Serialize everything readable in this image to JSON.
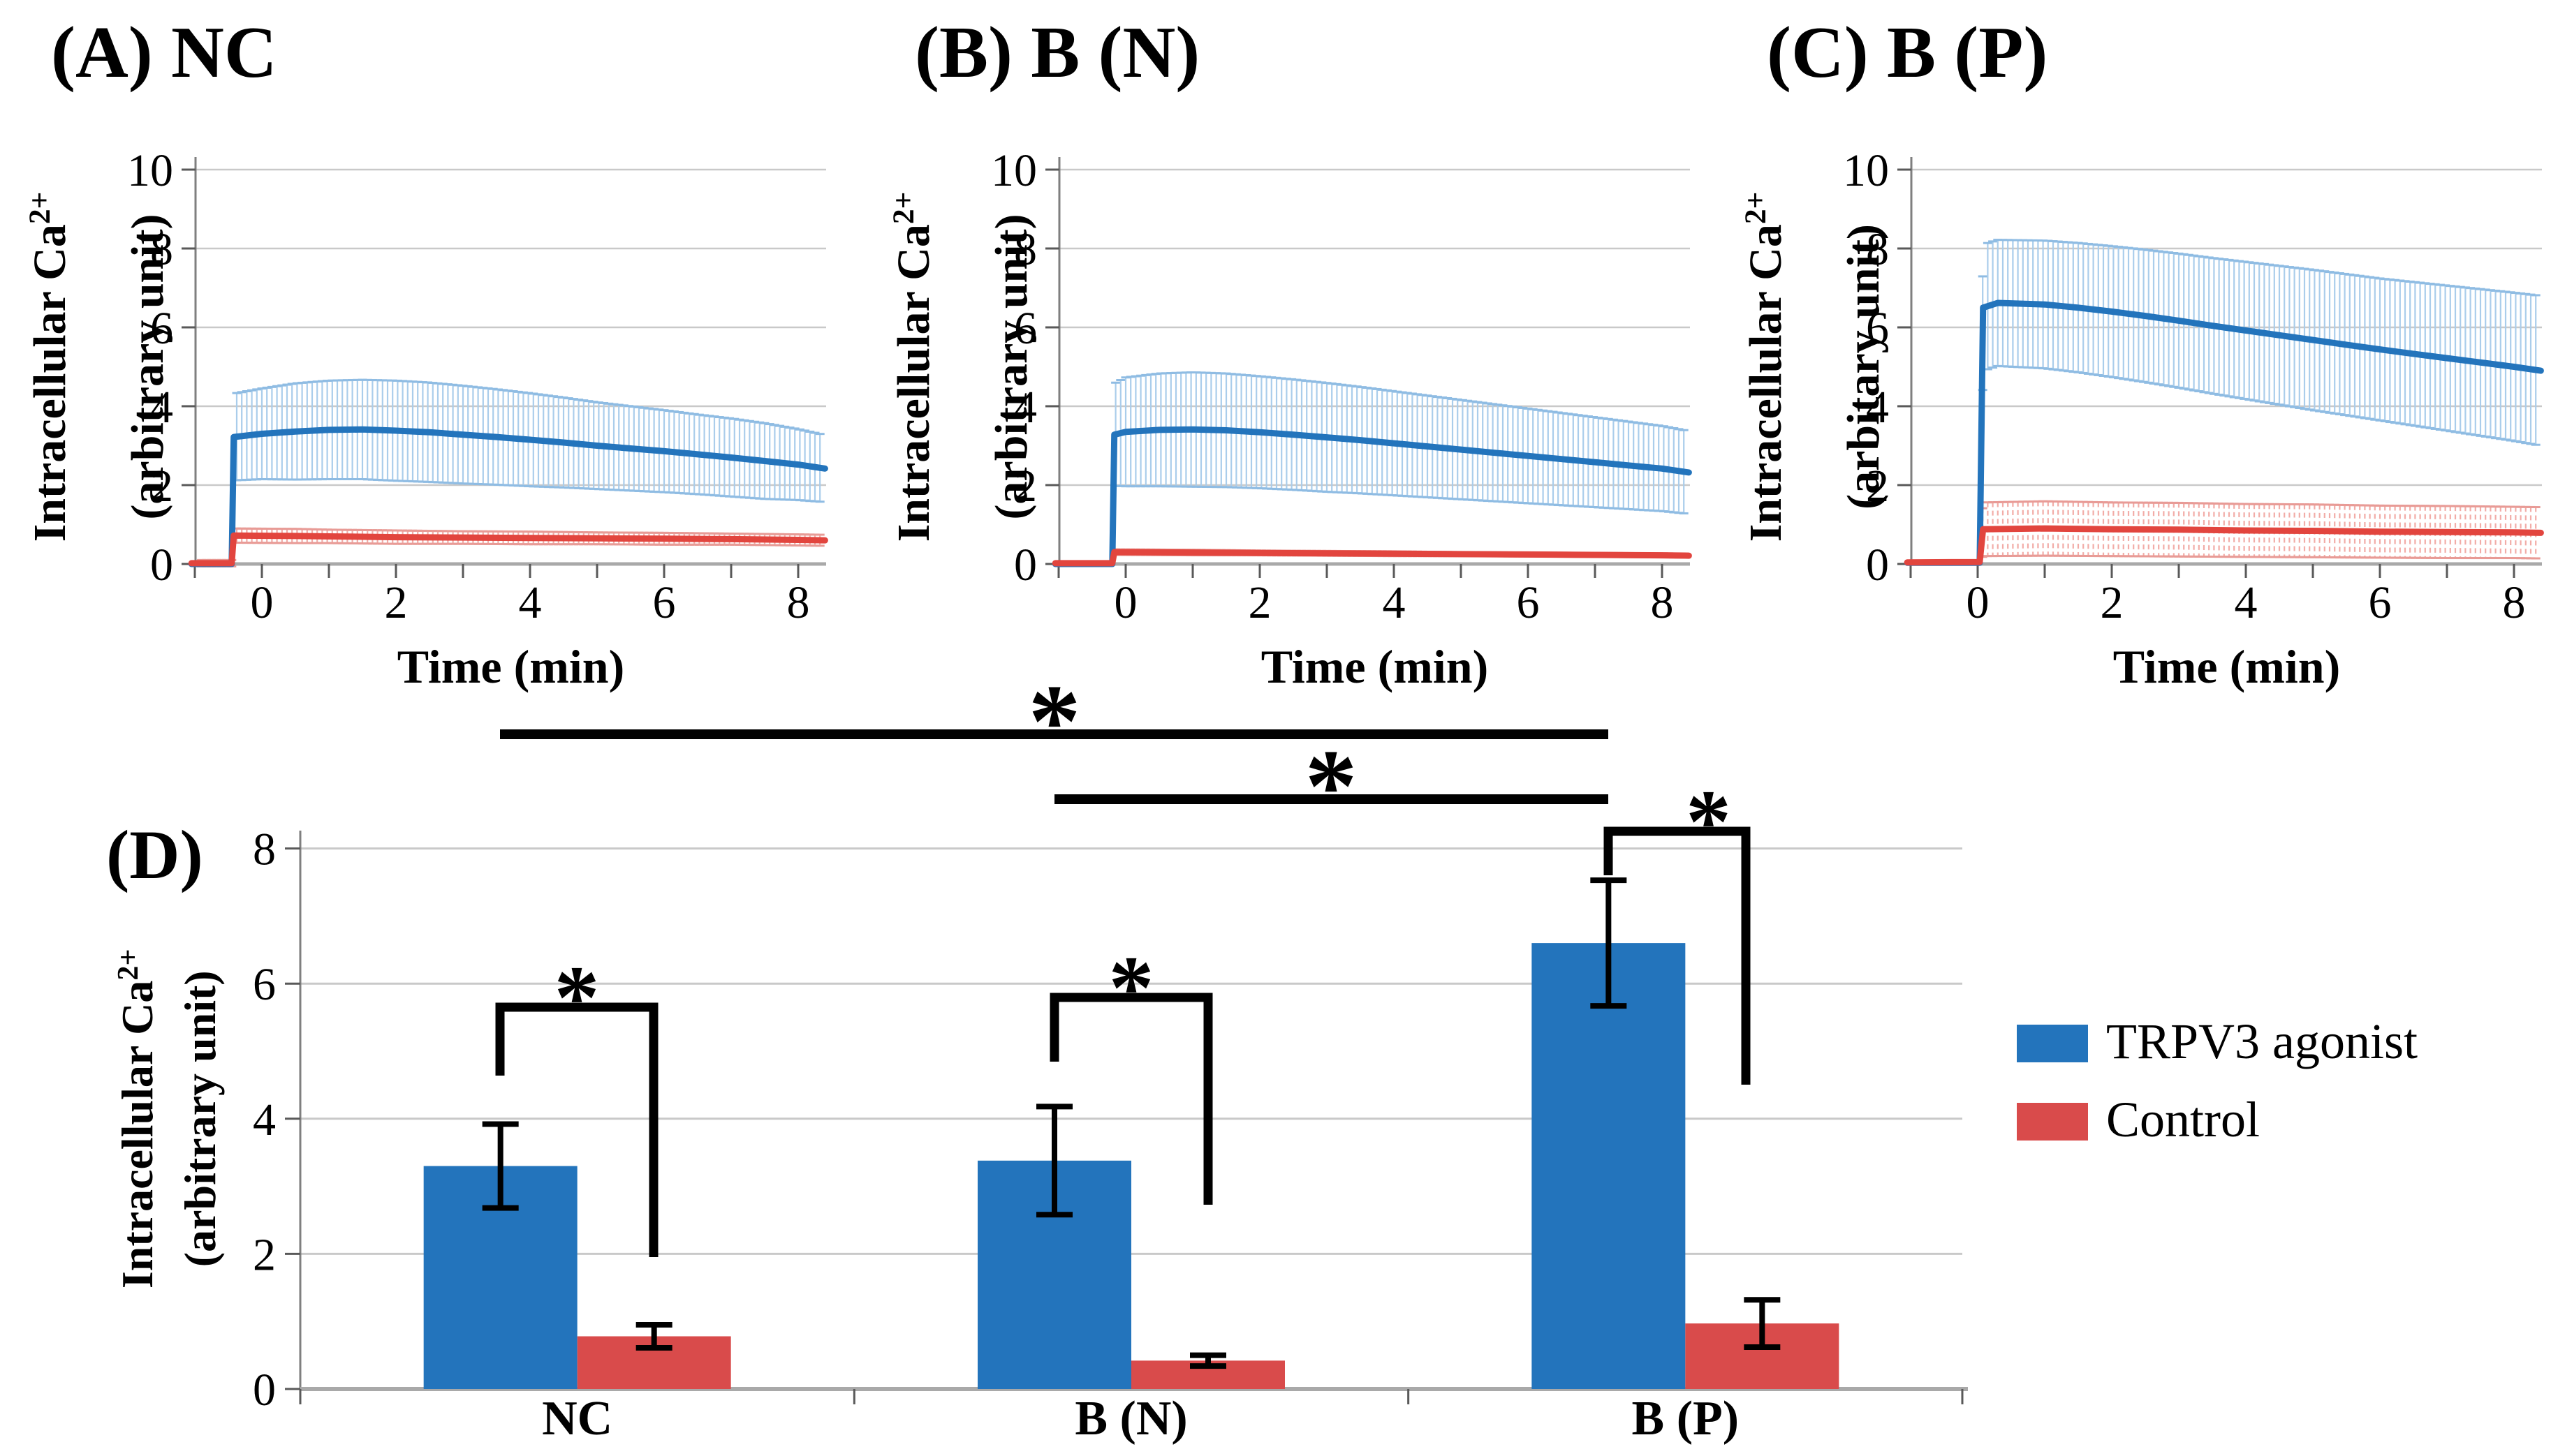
{
  "colors": {
    "trpv3_blue": "#2374BC",
    "control_red": "#D94B4B",
    "red_line": "#E2453E",
    "blue_band": "#AACDEB",
    "blue_cap": "#8FBCE3",
    "red_band": "#F2ACA7",
    "red_cap": "#E89B96",
    "grid": "#C9C9C9",
    "baseline": "#A9A9A9",
    "axis": "#7F7F7F",
    "tick": "#595959",
    "annotation": "#000000"
  },
  "legend": {
    "items": [
      {
        "label": "TRPV3 agonist",
        "color_key": "trpv3_blue"
      },
      {
        "label": "Control",
        "color_key": "control_red"
      }
    ]
  },
  "chart_data": [
    {
      "id": "A",
      "type": "line",
      "title": "(A) NC",
      "xlabel": "Time (min)",
      "ylabel_line1": "Intracellular Ca",
      "ylabel_sup": "2+",
      "ylabel_line2": "(arbitrary unit)",
      "xlim": [
        -1.05,
        8.4
      ],
      "ylim": [
        0,
        10
      ],
      "xticks": [
        0,
        2,
        4,
        6,
        8
      ],
      "yticks": [
        0,
        2,
        4,
        6,
        8,
        10
      ],
      "grid": true,
      "series": [
        {
          "name": "TRPV3 agonist",
          "color": "blue",
          "keypoints": [
            [
              -1.05,
              0.0,
              0
            ],
            [
              -0.45,
              0.0,
              0
            ],
            [
              -0.42,
              3.22,
              1.1
            ],
            [
              0,
              3.3,
              1.15
            ],
            [
              0.5,
              3.36,
              1.22
            ],
            [
              1,
              3.4,
              1.25
            ],
            [
              1.5,
              3.41,
              1.26
            ],
            [
              2,
              3.38,
              1.27
            ],
            [
              2.5,
              3.34,
              1.26
            ],
            [
              3,
              3.28,
              1.24
            ],
            [
              3.5,
              3.22,
              1.21
            ],
            [
              4,
              3.15,
              1.18
            ],
            [
              4.5,
              3.08,
              1.14
            ],
            [
              5,
              3.0,
              1.1
            ],
            [
              5.5,
              2.93,
              1.07
            ],
            [
              6,
              2.86,
              1.04
            ],
            [
              6.5,
              2.78,
              1.01
            ],
            [
              7,
              2.7,
              0.99
            ],
            [
              7.5,
              2.61,
              0.96
            ],
            [
              8,
              2.52,
              0.9
            ],
            [
              8.4,
              2.42,
              0.85
            ]
          ]
        },
        {
          "name": "Control",
          "color": "red",
          "keypoints": [
            [
              -1.05,
              0.02,
              0.08
            ],
            [
              -0.45,
              0.02,
              0.08
            ],
            [
              -0.42,
              0.72,
              0.18
            ],
            [
              0.5,
              0.71,
              0.18
            ],
            [
              1,
              0.7,
              0.17
            ],
            [
              2,
              0.68,
              0.17
            ],
            [
              3,
              0.67,
              0.16
            ],
            [
              4,
              0.66,
              0.16
            ],
            [
              5,
              0.65,
              0.15
            ],
            [
              6,
              0.64,
              0.15
            ],
            [
              7,
              0.63,
              0.14
            ],
            [
              8,
              0.61,
              0.14
            ],
            [
              8.4,
              0.6,
              0.14
            ]
          ]
        }
      ]
    },
    {
      "id": "B",
      "type": "line",
      "title": "(B) B (N)",
      "xlabel": "Time (min)",
      "ylabel_line1": "Intracellular Ca",
      "ylabel_sup": "2+",
      "ylabel_line2": "(arbitrary unit)",
      "xlim": [
        -1.05,
        8.4
      ],
      "ylim": [
        0,
        10
      ],
      "xticks": [
        0,
        2,
        4,
        6,
        8
      ],
      "yticks": [
        0,
        2,
        4,
        6,
        8,
        10
      ],
      "grid": true,
      "series": [
        {
          "name": "TRPV3 agonist",
          "color": "blue",
          "keypoints": [
            [
              -1.05,
              0.0,
              0
            ],
            [
              -0.2,
              0.0,
              0
            ],
            [
              -0.17,
              3.28,
              1.3
            ],
            [
              0,
              3.35,
              1.38
            ],
            [
              0.5,
              3.4,
              1.43
            ],
            [
              1,
              3.41,
              1.45
            ],
            [
              1.5,
              3.39,
              1.44
            ],
            [
              2,
              3.34,
              1.42
            ],
            [
              2.5,
              3.28,
              1.4
            ],
            [
              3,
              3.21,
              1.38
            ],
            [
              3.5,
              3.14,
              1.35
            ],
            [
              4,
              3.06,
              1.32
            ],
            [
              4.5,
              2.98,
              1.29
            ],
            [
              5,
              2.9,
              1.26
            ],
            [
              5.5,
              2.82,
              1.23
            ],
            [
              6,
              2.74,
              1.2
            ],
            [
              6.5,
              2.66,
              1.17
            ],
            [
              7,
              2.58,
              1.14
            ],
            [
              7.5,
              2.5,
              1.11
            ],
            [
              8,
              2.42,
              1.08
            ],
            [
              8.4,
              2.32,
              1.05
            ]
          ]
        },
        {
          "name": "Control",
          "color": "red",
          "keypoints": [
            [
              -1.05,
              0.02,
              0.03
            ],
            [
              -0.2,
              0.02,
              0.03
            ],
            [
              -0.17,
              0.3,
              0.07
            ],
            [
              1,
              0.29,
              0.07
            ],
            [
              2,
              0.28,
              0.06
            ],
            [
              3,
              0.27,
              0.06
            ],
            [
              4,
              0.26,
              0.06
            ],
            [
              5,
              0.25,
              0.05
            ],
            [
              6,
              0.24,
              0.05
            ],
            [
              7,
              0.23,
              0.05
            ],
            [
              8,
              0.22,
              0.05
            ],
            [
              8.4,
              0.21,
              0.05
            ]
          ]
        }
      ]
    },
    {
      "id": "C",
      "type": "line",
      "title": "(C) B (P)",
      "xlabel": "Time (min)",
      "ylabel_line1": "Intracellular Ca",
      "ylabel_sup": "2+",
      "ylabel_line2": "(arbitary unit)",
      "xlim": [
        -1.05,
        8.4
      ],
      "ylim": [
        0,
        10
      ],
      "xticks": [
        0,
        2,
        4,
        6,
        8
      ],
      "yticks": [
        0,
        2,
        4,
        6,
        8,
        10
      ],
      "grid": true,
      "series": [
        {
          "name": "TRPV3 agonist",
          "color": "blue",
          "keypoints": [
            [
              -1.05,
              0.03,
              0
            ],
            [
              0.03,
              0.03,
              0
            ],
            [
              0.08,
              6.5,
              1.6
            ],
            [
              0.3,
              6.62,
              1.6
            ],
            [
              1,
              6.58,
              1.62
            ],
            [
              1.5,
              6.5,
              1.64
            ],
            [
              2,
              6.4,
              1.66
            ],
            [
              2.5,
              6.29,
              1.68
            ],
            [
              3,
              6.17,
              1.7
            ],
            [
              3.5,
              6.04,
              1.72
            ],
            [
              4,
              5.92,
              1.74
            ],
            [
              4.5,
              5.8,
              1.76
            ],
            [
              5,
              5.68,
              1.78
            ],
            [
              5.5,
              5.56,
              1.79
            ],
            [
              6,
              5.44,
              1.8
            ],
            [
              6.5,
              5.33,
              1.82
            ],
            [
              7,
              5.22,
              1.84
            ],
            [
              7.5,
              5.11,
              1.86
            ],
            [
              8,
              5.0,
              1.88
            ],
            [
              8.4,
              4.9,
              1.9
            ]
          ]
        },
        {
          "name": "Control",
          "color": "red",
          "keypoints": [
            [
              -1.05,
              0.04,
              0.04
            ],
            [
              0.03,
              0.05,
              0.04
            ],
            [
              0.08,
              0.88,
              0.68
            ],
            [
              1,
              0.9,
              0.69
            ],
            [
              2,
              0.88,
              0.68
            ],
            [
              3,
              0.87,
              0.68
            ],
            [
              4,
              0.85,
              0.67
            ],
            [
              5,
              0.84,
              0.67
            ],
            [
              6,
              0.82,
              0.66
            ],
            [
              7,
              0.81,
              0.66
            ],
            [
              8,
              0.8,
              0.65
            ],
            [
              8.4,
              0.79,
              0.65
            ]
          ]
        }
      ]
    },
    {
      "id": "D",
      "type": "bar",
      "panel_label": "(D)",
      "ylabel_line1": "Intracellular Ca",
      "ylabel_sup": "2+",
      "ylabel_line2": "(arbitrary unit)",
      "ylim": [
        0,
        8
      ],
      "yticks": [
        0,
        2,
        4,
        6,
        8
      ],
      "grid": true,
      "legend_position": "right",
      "categories": [
        "NC",
        "B (N)",
        "B (P)"
      ],
      "series": [
        {
          "name": "TRPV3 agonist",
          "color": "blue",
          "values": [
            3.3,
            3.38,
            6.6
          ],
          "errors": [
            0.62,
            0.8,
            0.93
          ]
        },
        {
          "name": "Control",
          "color": "red",
          "values": [
            0.78,
            0.42,
            0.97
          ],
          "errors": [
            0.17,
            0.08,
            0.35
          ]
        }
      ],
      "significance": {
        "pair_brackets": [
          {
            "group": "NC",
            "between": [
              "TRPV3 agonist",
              "Control"
            ],
            "label": "*"
          },
          {
            "group": "B (N)",
            "between": [
              "TRPV3 agonist",
              "Control"
            ],
            "label": "*"
          },
          {
            "group": "B (P)",
            "between": [
              "TRPV3 agonist",
              "Control"
            ],
            "label": "*"
          }
        ],
        "between_group_lines": [
          {
            "from": "NC",
            "to": "B (P)",
            "label": "*"
          },
          {
            "from": "B (N)",
            "to": "B (P)",
            "label": "*"
          }
        ]
      }
    }
  ]
}
